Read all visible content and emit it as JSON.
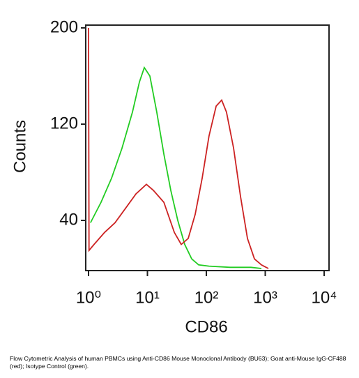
{
  "chart_data": {
    "type": "line",
    "x_label": "CD86",
    "y_label": "Counts",
    "xlim": [
      1,
      10000
    ],
    "xscale": "log",
    "xticks": [
      {
        "value": 1,
        "label": "10⁰"
      },
      {
        "value": 10,
        "label": "10¹"
      },
      {
        "value": 100,
        "label": "10²"
      },
      {
        "value": 1000,
        "label": "10³"
      },
      {
        "value": 10000,
        "label": "10⁴"
      }
    ],
    "ylim": [
      0,
      200
    ],
    "yticks": [
      40,
      120,
      200
    ],
    "series": [
      {
        "color": "#22cc22",
        "x": [
          1.08,
          1.63,
          2.46,
          3.7,
          5.57,
          7.31,
          8.85,
          11.0,
          14.4,
          19.0,
          24.9,
          32.7,
          43.0,
          56.4,
          74.1,
          111,
          253,
          572,
          861
        ],
        "values": [
          38,
          55,
          75,
          100,
          130,
          155,
          167,
          160,
          130,
          95,
          65,
          40,
          20,
          8,
          3,
          2,
          1,
          1,
          0
        ]
      },
      {
        "color": "#cc2222",
        "x": [
          1,
          1.02,
          1.24,
          1.87,
          2.82,
          4.24,
          6.38,
          9.6,
          12.6,
          19.0,
          28.6,
          37.5,
          49.2,
          64.7,
          85.0,
          111,
          147,
          182,
          220,
          290,
          380,
          499,
          656,
          861,
          1130
        ],
        "values": [
          200,
          15,
          20,
          30,
          38,
          50,
          62,
          70,
          65,
          55,
          30,
          20,
          25,
          45,
          75,
          110,
          135,
          140,
          130,
          100,
          60,
          25,
          8,
          3,
          0
        ]
      }
    ]
  },
  "caption": "Flow Cytometric Analysis of human PBMCs using Anti-CD86 Mouse Monoclonal Antibody (BU63); Goat anti-Mouse IgG-CF488 (red); Isotype Control (green)."
}
